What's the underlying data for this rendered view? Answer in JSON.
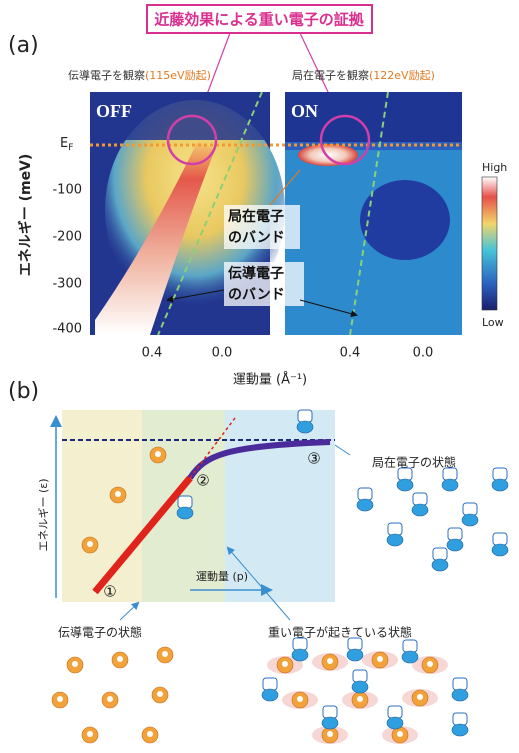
{
  "banner": "近藤効果による重い電子の証拠",
  "panel_a": {
    "label": "(a)",
    "left_caption": "伝導電子を観察",
    "left_note": "(115eV励起)",
    "right_caption": "局在電子を観察",
    "right_note": "(122eV励起)",
    "left_tag": "OFF",
    "right_tag": "ON",
    "ef_main": "E",
    "ef_sub": "F",
    "y_axis_label": "エネルギー (meV)",
    "y_ticks": [
      "-100",
      "-200",
      "-300",
      "-400"
    ],
    "x_ticks": [
      "0.4",
      "0.0",
      "0.4",
      "0.0"
    ],
    "x_axis_label": "運動量 (Å⁻¹)",
    "colorbar_high": "High",
    "colorbar_low": "Low",
    "localized_band": [
      "局在電子",
      "のバンド"
    ],
    "conduction_band": [
      "伝導電子",
      "のバンド"
    ]
  },
  "panel_b": {
    "label": "(b)",
    "y_axis_label": "エネルギー (ε)",
    "x_axis_label": "運動量 (p)",
    "markers": [
      "①",
      "②",
      "③"
    ],
    "localized_state": "局在電子の状態",
    "conduction_state": "伝導電子の状態",
    "heavy_state": "重い電子が起きている状態"
  }
}
